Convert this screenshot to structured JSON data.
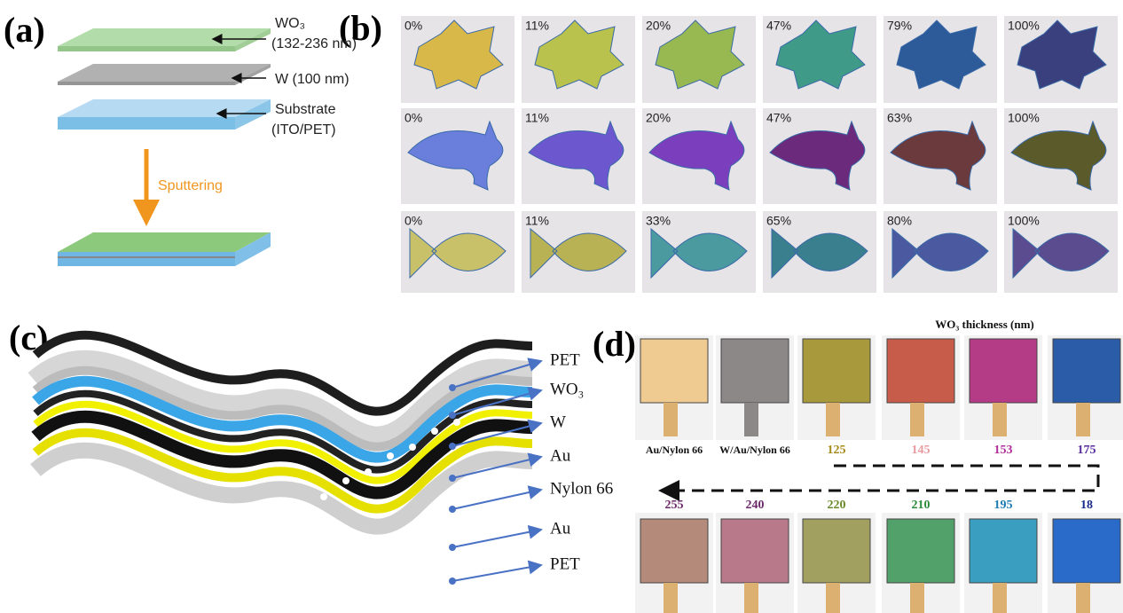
{
  "panel_a": {
    "label": "(a)",
    "wo3_label": "WO₃",
    "wo3_range": "(132-236 nm)",
    "w_label": "W (100 nm)",
    "substrate_label": "Substrate",
    "substrate_detail": "(ITO/PET)",
    "process": "Sputtering"
  },
  "panel_b": {
    "label": "(b)",
    "rows": [
      [
        "0%",
        "11%",
        "20%",
        "47%",
        "79%",
        "100%"
      ],
      [
        "0%",
        "11%",
        "20%",
        "47%",
        "63%",
        "100%"
      ],
      [
        "0%",
        "11%",
        "33%",
        "65%",
        "80%",
        "100%"
      ]
    ]
  },
  "panel_c": {
    "label": "(c)",
    "layers": [
      "PET",
      "WO₃",
      "W",
      "Au",
      "Nylon 66",
      "Au",
      "PET"
    ]
  },
  "panel_d": {
    "label": "(d)",
    "axis_title": "WO₃ thickness (nm)",
    "top_row": [
      "Au/Nylon 66",
      "W/Au/Nylon 66",
      "125",
      "145",
      "153",
      "175"
    ],
    "bottom_row": [
      "255",
      "240",
      "220",
      "210",
      "195",
      "18"
    ]
  }
}
